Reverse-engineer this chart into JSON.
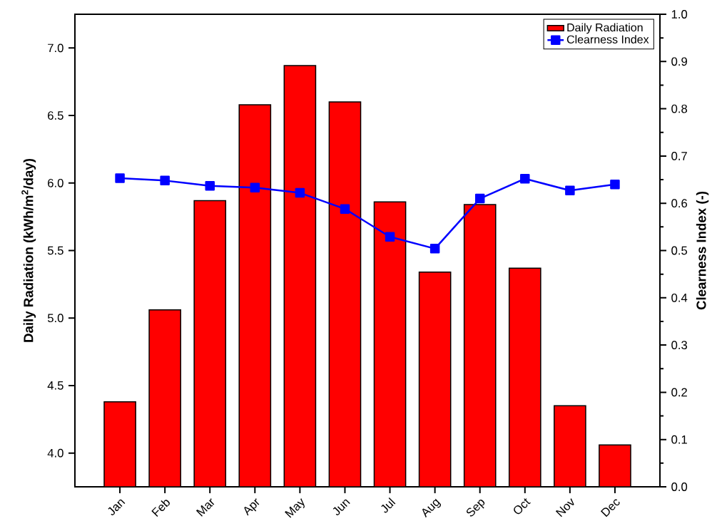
{
  "chart_data": {
    "type": "bar",
    "xlabel": null,
    "ylabel": "Daily Radiation (kWh/m$^{2}$/day)",
    "y2label": "Clearness Index (-)",
    "categories": [
      "Jan",
      "Feb",
      "Mar",
      "Apr",
      "May",
      "Jun",
      "Jul",
      "Aug",
      "Sep",
      "Oct",
      "Nov",
      "Dec"
    ],
    "series": [
      {
        "name": "Daily Radiation",
        "color": "#ff0000",
        "values": [
          4.38,
          5.06,
          5.87,
          6.58,
          6.87,
          6.6,
          5.86,
          5.34,
          5.84,
          5.37,
          4.35,
          4.06
        ]
      },
      {
        "name": "Clearness Index",
        "type": "line",
        "axis": "y2",
        "color": "#0000ff",
        "marker": "square",
        "line_style": "solid",
        "values": [
          0.653,
          0.648,
          0.637,
          0.633,
          0.622,
          0.588,
          0.529,
          0.504,
          0.61,
          0.652,
          0.627,
          0.64
        ]
      }
    ],
    "ylim": [
      3.75,
      7.25
    ],
    "yticks": [
      {
        "value": 4.0,
        "label": "4.0"
      },
      {
        "value": 4.5,
        "label": "4.5"
      },
      {
        "value": 5.0,
        "label": "5.0"
      },
      {
        "value": 5.5,
        "label": "5.5"
      },
      {
        "value": 6.0,
        "label": "6.0"
      },
      {
        "value": 6.5,
        "label": "6.5"
      },
      {
        "value": 7.0,
        "label": "7.0"
      }
    ],
    "y2lim": [
      0,
      1
    ],
    "y2ticks": [
      {
        "value": 0,
        "label": "0.0"
      },
      {
        "value": 0.1,
        "label": "0.1"
      },
      {
        "value": 0.2,
        "label": "0.2"
      },
      {
        "value": 0.3,
        "label": "0.3"
      },
      {
        "value": 0.4,
        "label": "0.4"
      },
      {
        "value": 0.5,
        "label": "0.5"
      },
      {
        "value": 0.6,
        "label": "0.6"
      },
      {
        "value": 0.7,
        "label": "0.7"
      },
      {
        "value": 0.8,
        "label": "0.8"
      },
      {
        "value": 0.9,
        "label": "0.9"
      },
      {
        "value": 1,
        "label": "1.0"
      }
    ],
    "legend": "top right"
  }
}
